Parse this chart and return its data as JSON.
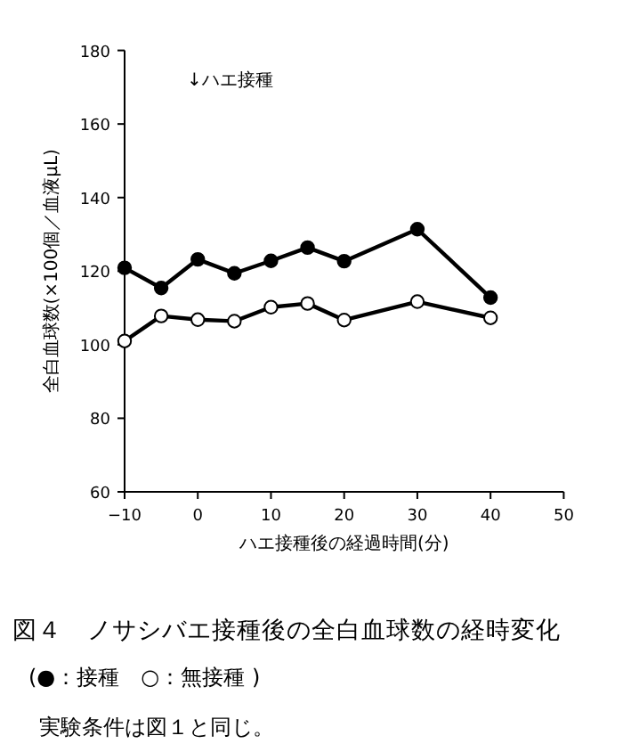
{
  "chart_data": {
    "type": "line",
    "title": "図４　ノサシバエ接種後の全白血球数の経時変化",
    "xlabel": "ハエ接種後の経過時間(分)",
    "ylabel": "全白血球数(×100個／血液μL)",
    "x": [
      -10,
      -5,
      0,
      5,
      10,
      15,
      20,
      30,
      40
    ],
    "series": [
      {
        "color": "#000000",
        "values": [
          120.9,
          115.4,
          123.2,
          119.4,
          122.8,
          126.4,
          122.7,
          131.4,
          112.8
        ]
      },
      {
        "color": "#000000",
        "values": [
          101,
          107.8,
          106.8,
          106.4,
          110.2,
          111.2,
          106.7,
          111.7,
          107.3
        ]
      }
    ],
    "xlim": [
      -10,
      50
    ],
    "xticks": [
      -10,
      0,
      10,
      20,
      30,
      40,
      50
    ],
    "ylim": [
      60,
      180
    ],
    "yticks": [
      60,
      80,
      100,
      120,
      140,
      160,
      180
    ],
    "marker": "circle",
    "line_style": "solid",
    "grid": false,
    "annotations": [
      "↓ハエ接種",
      "(●：接種　○：無接種 )",
      "実験条件は図１と同じ。"
    ]
  }
}
